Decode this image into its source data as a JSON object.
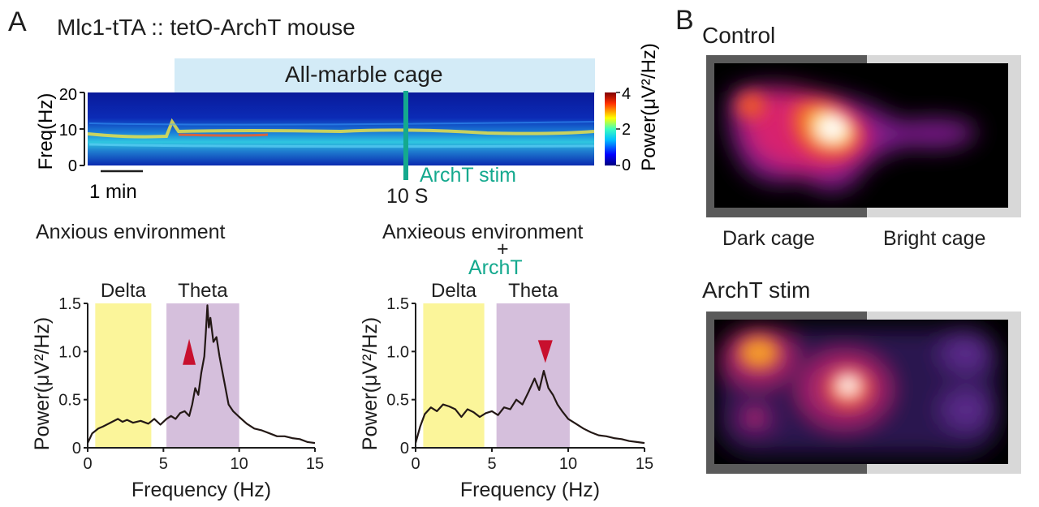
{
  "panel_a": {
    "letter": "A",
    "title": "Mlc1-tTA :: tetO-ArchT mouse",
    "cage_label": "All-marble cage",
    "stim_label": "ArchT stim",
    "time_label": "10 S",
    "scale_bar_label": "1 min",
    "left_condition": "Anxious environment",
    "right_condition_line1": "Anxieous environment",
    "right_condition_plus": "+",
    "right_condition_line2": "ArchT"
  },
  "panel_b": {
    "letter": "B",
    "top_title": "Control",
    "bottom_title": "ArchT stim",
    "dark_label": "Dark cage",
    "bright_label": "Bright cage"
  },
  "colors": {
    "cage_band": "#d3ebf7",
    "stim_line": "#14a98e",
    "delta_band": "#fbf59a",
    "theta_band": "#d5bfdc",
    "arrow": "#c8102e",
    "trace": "#231815",
    "dark_cage_frame": "#5a5a5a",
    "bright_cage_frame": "#d8d8d8"
  },
  "chart_data": [
    {
      "type": "heatmap",
      "ylabel": "Freq(Hz)",
      "yticks": [
        "20",
        "10",
        "0"
      ],
      "ylim": [
        0,
        20
      ],
      "colorbar_label": "Power(μV²/Hz)",
      "colorbar_ticks": [
        "4",
        "2",
        "0"
      ],
      "colorbar_range": [
        0,
        4
      ],
      "dominant_band_hz": 8
    },
    {
      "type": "line",
      "xlabel": "Frequency (Hz)",
      "ylabel": "Power(μV²/Hz)",
      "xticks": [
        "0",
        "5",
        "10",
        "15"
      ],
      "yticks": [
        "0",
        "0.5",
        "1.0",
        "1.5"
      ],
      "xlim": [
        0,
        15
      ],
      "ylim": [
        0,
        1.5
      ],
      "bands": [
        {
          "name": "Delta",
          "range": [
            0.5,
            4.2
          ]
        },
        {
          "name": "Theta",
          "range": [
            5.2,
            10
          ]
        }
      ],
      "arrow": {
        "direction": "up",
        "x": 6.7,
        "y": 0.98
      },
      "x": [
        0,
        0.3,
        0.7,
        1.0,
        1.5,
        2.0,
        2.3,
        2.6,
        3.0,
        3.5,
        4.0,
        4.4,
        4.8,
        5.2,
        5.5,
        5.8,
        6.1,
        6.4,
        6.7,
        6.9,
        7.1,
        7.3,
        7.5,
        7.7,
        7.8,
        7.9,
        8.0,
        8.1,
        8.3,
        8.5,
        8.7,
        9.0,
        9.3,
        9.6,
        10.0,
        10.5,
        11.0,
        11.5,
        12.0,
        12.5,
        13.0,
        13.5,
        14.0,
        14.5,
        15.0
      ],
      "y": [
        0.05,
        0.15,
        0.2,
        0.22,
        0.26,
        0.3,
        0.27,
        0.29,
        0.26,
        0.28,
        0.25,
        0.3,
        0.24,
        0.3,
        0.33,
        0.3,
        0.36,
        0.38,
        0.33,
        0.45,
        0.62,
        0.55,
        0.78,
        0.95,
        1.2,
        1.48,
        1.25,
        1.35,
        1.1,
        1.15,
        0.95,
        0.7,
        0.45,
        0.38,
        0.32,
        0.25,
        0.2,
        0.18,
        0.15,
        0.12,
        0.12,
        0.1,
        0.09,
        0.06,
        0.05
      ]
    },
    {
      "type": "line",
      "xlabel": "Frequency (Hz)",
      "ylabel": "Power(μV²/Hz)",
      "xticks": [
        "0",
        "5",
        "10",
        "15"
      ],
      "yticks": [
        "0",
        "0.5",
        "1.0",
        "1.5"
      ],
      "xlim": [
        0,
        15
      ],
      "ylim": [
        0,
        1.5
      ],
      "bands": [
        {
          "name": "Delta",
          "range": [
            0.5,
            4.5
          ]
        },
        {
          "name": "Theta",
          "range": [
            5.3,
            10.1
          ]
        }
      ],
      "arrow": {
        "direction": "down",
        "x": 8.5,
        "y": 1.0
      },
      "x": [
        0,
        0.3,
        0.6,
        1.0,
        1.4,
        1.8,
        2.2,
        2.6,
        3.0,
        3.4,
        3.8,
        4.2,
        4.6,
        5.0,
        5.4,
        5.8,
        6.2,
        6.6,
        7.0,
        7.4,
        7.8,
        8.1,
        8.4,
        8.7,
        9.0,
        9.3,
        9.6,
        10.0,
        10.5,
        11.0,
        11.5,
        12.0,
        12.5,
        13.0,
        13.5,
        14.0,
        14.5,
        15.0
      ],
      "y": [
        0.05,
        0.22,
        0.35,
        0.42,
        0.38,
        0.45,
        0.43,
        0.4,
        0.32,
        0.4,
        0.37,
        0.32,
        0.36,
        0.38,
        0.34,
        0.42,
        0.4,
        0.5,
        0.45,
        0.58,
        0.72,
        0.6,
        0.8,
        0.62,
        0.55,
        0.45,
        0.38,
        0.3,
        0.25,
        0.2,
        0.16,
        0.13,
        0.12,
        0.1,
        0.09,
        0.07,
        0.06,
        0.05
      ]
    }
  ]
}
